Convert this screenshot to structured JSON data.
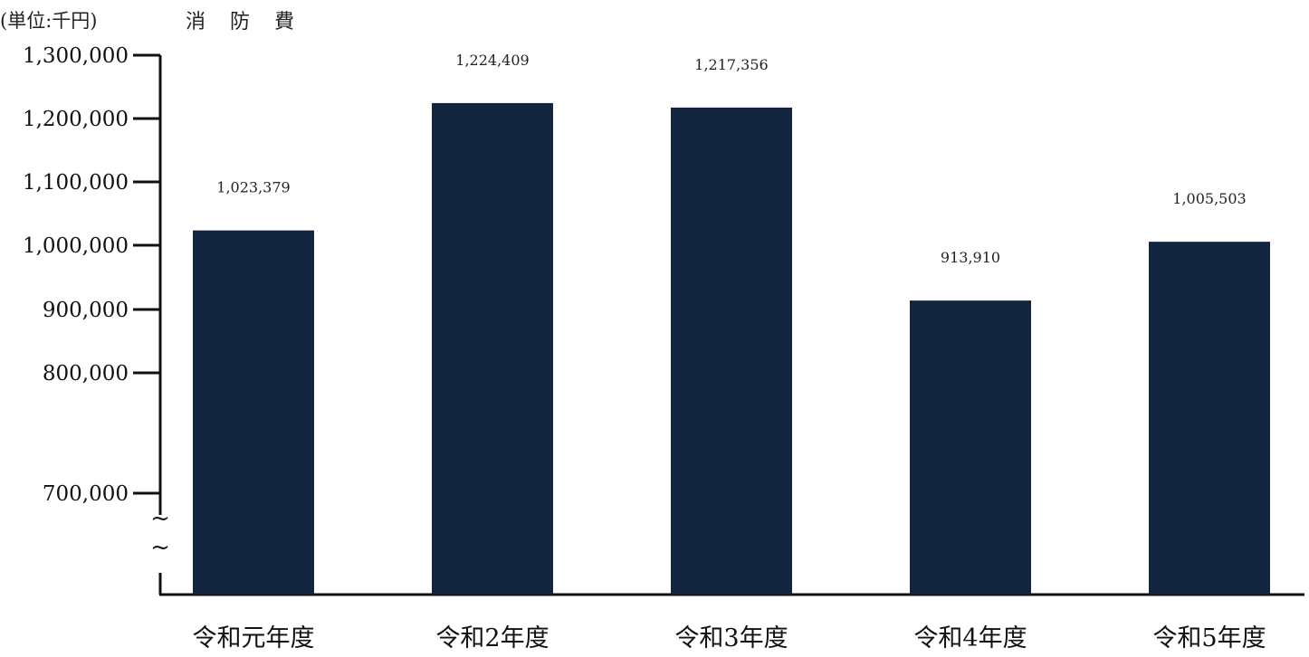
{
  "chart_data": {
    "type": "bar",
    "title": "消 防 費",
    "unit_label": "(単位:千円)",
    "xlabel": "",
    "ylabel": "",
    "categories": [
      "令和元年度",
      "令和2年度",
      "令和3年度",
      "令和4年度",
      "令和5年度"
    ],
    "values": [
      1023379,
      1224409,
      1217356,
      913910,
      1005503
    ],
    "value_labels": [
      "1,023,379",
      "1,224,409",
      "1,217,356",
      "913,910",
      "1,005,503"
    ],
    "y_ticks": [
      {
        "value": 700000,
        "label": "700,000"
      },
      {
        "value": 800000,
        "label": "800,000"
      },
      {
        "value": 900000,
        "label": "900,000"
      },
      {
        "value": 1000000,
        "label": "1,000,000"
      },
      {
        "value": 1100000,
        "label": "1,100,000"
      },
      {
        "value": 1200000,
        "label": "1,200,000"
      },
      {
        "value": 1300000,
        "label": "1,300,000"
      }
    ],
    "ylim": [
      700000,
      1300000
    ],
    "axis_break": true,
    "axis_break_glyph": "~",
    "bar_color": "#13243f",
    "grid": false,
    "legend": "none"
  }
}
